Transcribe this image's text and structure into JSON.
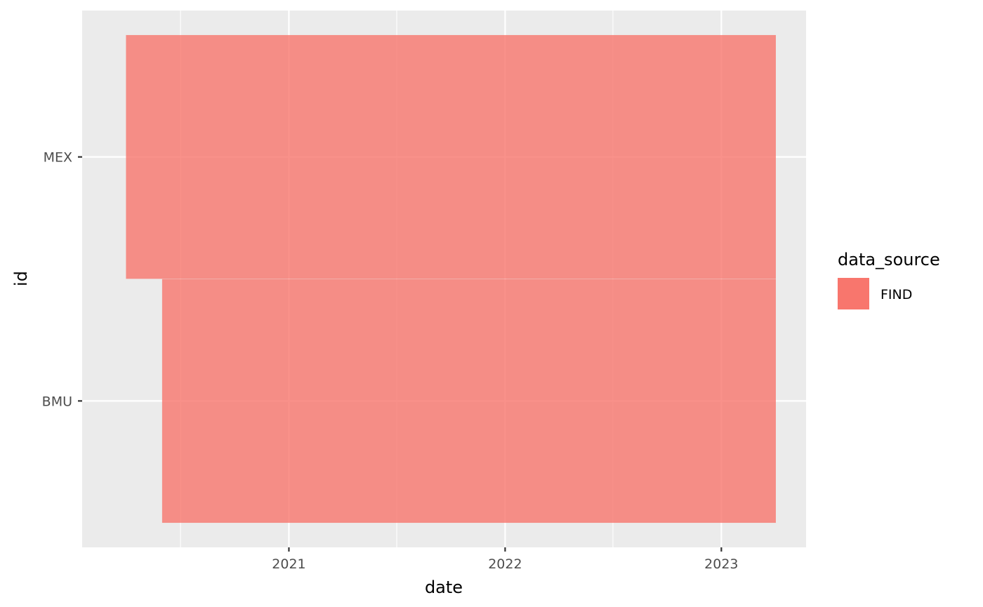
{
  "chart_data": {
    "type": "bar",
    "orientation": "horizontal",
    "xlabel": "date",
    "ylabel": "id",
    "x_is_date": true,
    "xlim": [
      "2020-01-18",
      "2023-05-24"
    ],
    "x_ticks": [
      {
        "value": "2021-01-01",
        "label": "2021"
      },
      {
        "value": "2022-01-01",
        "label": "2022"
      },
      {
        "value": "2023-01-01",
        "label": "2023"
      }
    ],
    "x_minor_ticks": [
      "2020-07-02",
      "2021-07-02",
      "2022-07-02"
    ],
    "categories": [
      "BMU",
      "MEX"
    ],
    "series": [
      {
        "name": "FIND",
        "color": "#F8766D",
        "bars": [
          {
            "category": "BMU",
            "start": "2020-06-01",
            "end": "2023-04-03"
          },
          {
            "category": "MEX",
            "start": "2020-04-01",
            "end": "2023-04-03"
          }
        ]
      }
    ],
    "legend": {
      "title": "data_source",
      "position": "right",
      "entries": [
        {
          "label": "FIND",
          "color": "#F8766D"
        }
      ]
    },
    "grid": true
  }
}
